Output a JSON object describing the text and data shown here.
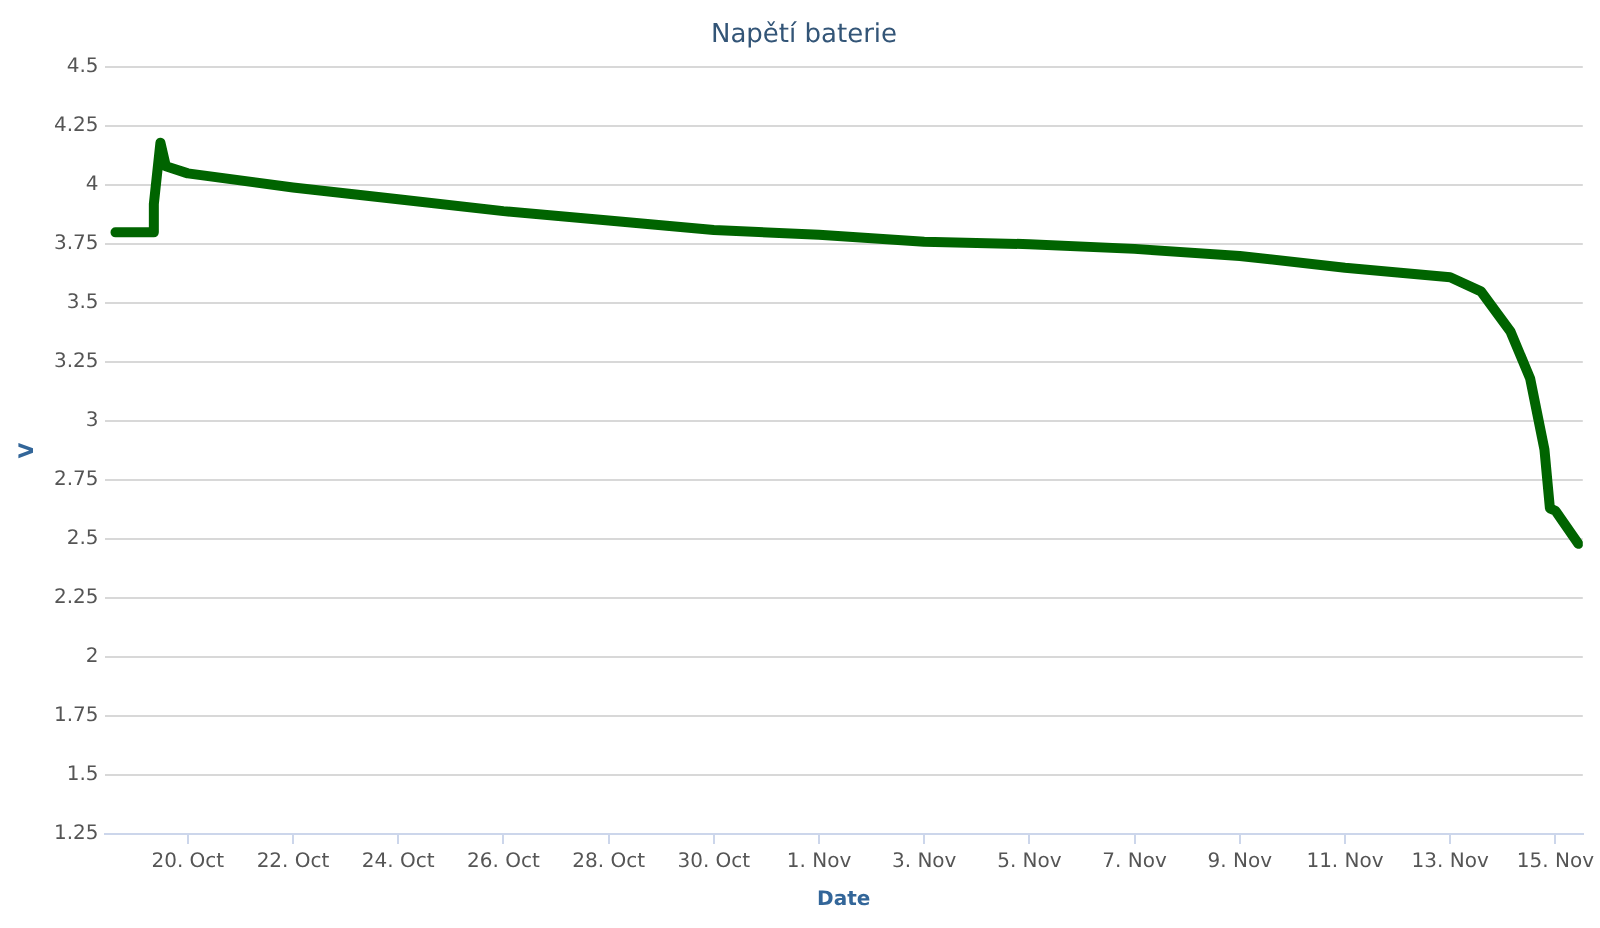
{
  "chart_data": {
    "type": "line",
    "title": "Napětí baterie",
    "xlabel": "Date",
    "ylabel": "V",
    "x": [
      "--10-18T15:00",
      "--10-19T08:00",
      "--10-19T08:30",
      "--10-19T11:30",
      "--10-19T14:00",
      "--10-20",
      "--10-22",
      "--10-24",
      "--10-26",
      "--10-28",
      "--10-30",
      "--11-01",
      "--11-03",
      "--11-05",
      "--11-07",
      "--11-09",
      "--11-11",
      "--11-13",
      "--11-13T14:00",
      "--11-14T03:30",
      "--11-14T12:30",
      "--11-14T19:00",
      "--11-14T21:30",
      "--11-15T00:00",
      "--11-15T10:30"
    ],
    "series": [
      {
        "color": "#006400",
        "values": [
          3.8,
          3.8,
          3.92,
          4.18,
          4.08,
          4.05,
          3.99,
          3.94,
          3.89,
          3.85,
          3.81,
          3.79,
          3.76,
          3.75,
          3.73,
          3.7,
          3.65,
          3.61,
          3.55,
          3.38,
          3.18,
          2.88,
          2.63,
          2.62,
          2.48
        ]
      }
    ],
    "xlim": [
      "--10-18T10:00",
      "--11-15T12:30"
    ],
    "xticks": [
      {
        "value": "--10-20",
        "label": "20. Oct"
      },
      {
        "value": "--10-22",
        "label": "22. Oct"
      },
      {
        "value": "--10-24",
        "label": "24. Oct"
      },
      {
        "value": "--10-26",
        "label": "26. Oct"
      },
      {
        "value": "--10-28",
        "label": "28. Oct"
      },
      {
        "value": "--10-30",
        "label": "30. Oct"
      },
      {
        "value": "--11-01",
        "label": "1. Nov"
      },
      {
        "value": "--11-03",
        "label": "3. Nov"
      },
      {
        "value": "--11-05",
        "label": "5. Nov"
      },
      {
        "value": "--11-07",
        "label": "7. Nov"
      },
      {
        "value": "--11-09",
        "label": "9. Nov"
      },
      {
        "value": "--11-11",
        "label": "11. Nov"
      },
      {
        "value": "--11-13",
        "label": "13. Nov"
      },
      {
        "value": "--11-15",
        "label": "15. Nov"
      }
    ],
    "ylim": [
      1.25,
      4.5
    ],
    "yticks": [
      1.25,
      1.5,
      1.75,
      2,
      2.25,
      2.5,
      2.75,
      3,
      3.25,
      3.5,
      3.75,
      4,
      4.25,
      4.5
    ],
    "grid": "y",
    "legend": false,
    "marker": "none",
    "line_style": "solid"
  }
}
